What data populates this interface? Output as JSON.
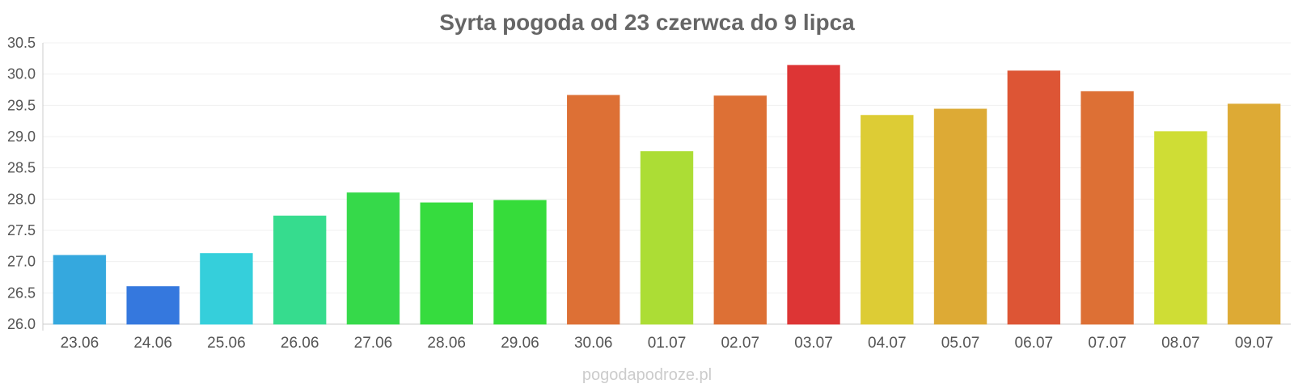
{
  "chart_data": {
    "type": "bar",
    "title": "Syrta pogoda od 23 czerwca do 9 lipca",
    "xlabel": "",
    "ylabel": "",
    "categories": [
      "23.06",
      "24.06",
      "25.06",
      "26.06",
      "27.06",
      "28.06",
      "29.06",
      "30.06",
      "01.07",
      "02.07",
      "03.07",
      "04.07",
      "05.07",
      "06.07",
      "07.07",
      "08.07",
      "09.07"
    ],
    "values": [
      27.1,
      26.6,
      27.13,
      27.73,
      28.1,
      27.94,
      27.98,
      29.66,
      28.76,
      29.65,
      30.14,
      29.34,
      29.44,
      30.05,
      29.72,
      29.08,
      29.52
    ],
    "colors": [
      "#35a8de",
      "#3578de",
      "#35cfdb",
      "#36dc8e",
      "#36d94a",
      "#36dc3e",
      "#36dc3a",
      "#dd7035",
      "#acdd35",
      "#dd7035",
      "#dd3535",
      "#ddcc35",
      "#ddaa35",
      "#dd5535",
      "#dd7035",
      "#cfdd35",
      "#ddaa35"
    ],
    "ylim": [
      26.0,
      30.5
    ],
    "yticks": [
      "26.0",
      "26.5",
      "27.0",
      "27.5",
      "28.0",
      "28.5",
      "29.0",
      "29.5",
      "30.0",
      "30.5"
    ],
    "grid": true,
    "legend": "none"
  },
  "watermark": "pogodapodroze.pl"
}
